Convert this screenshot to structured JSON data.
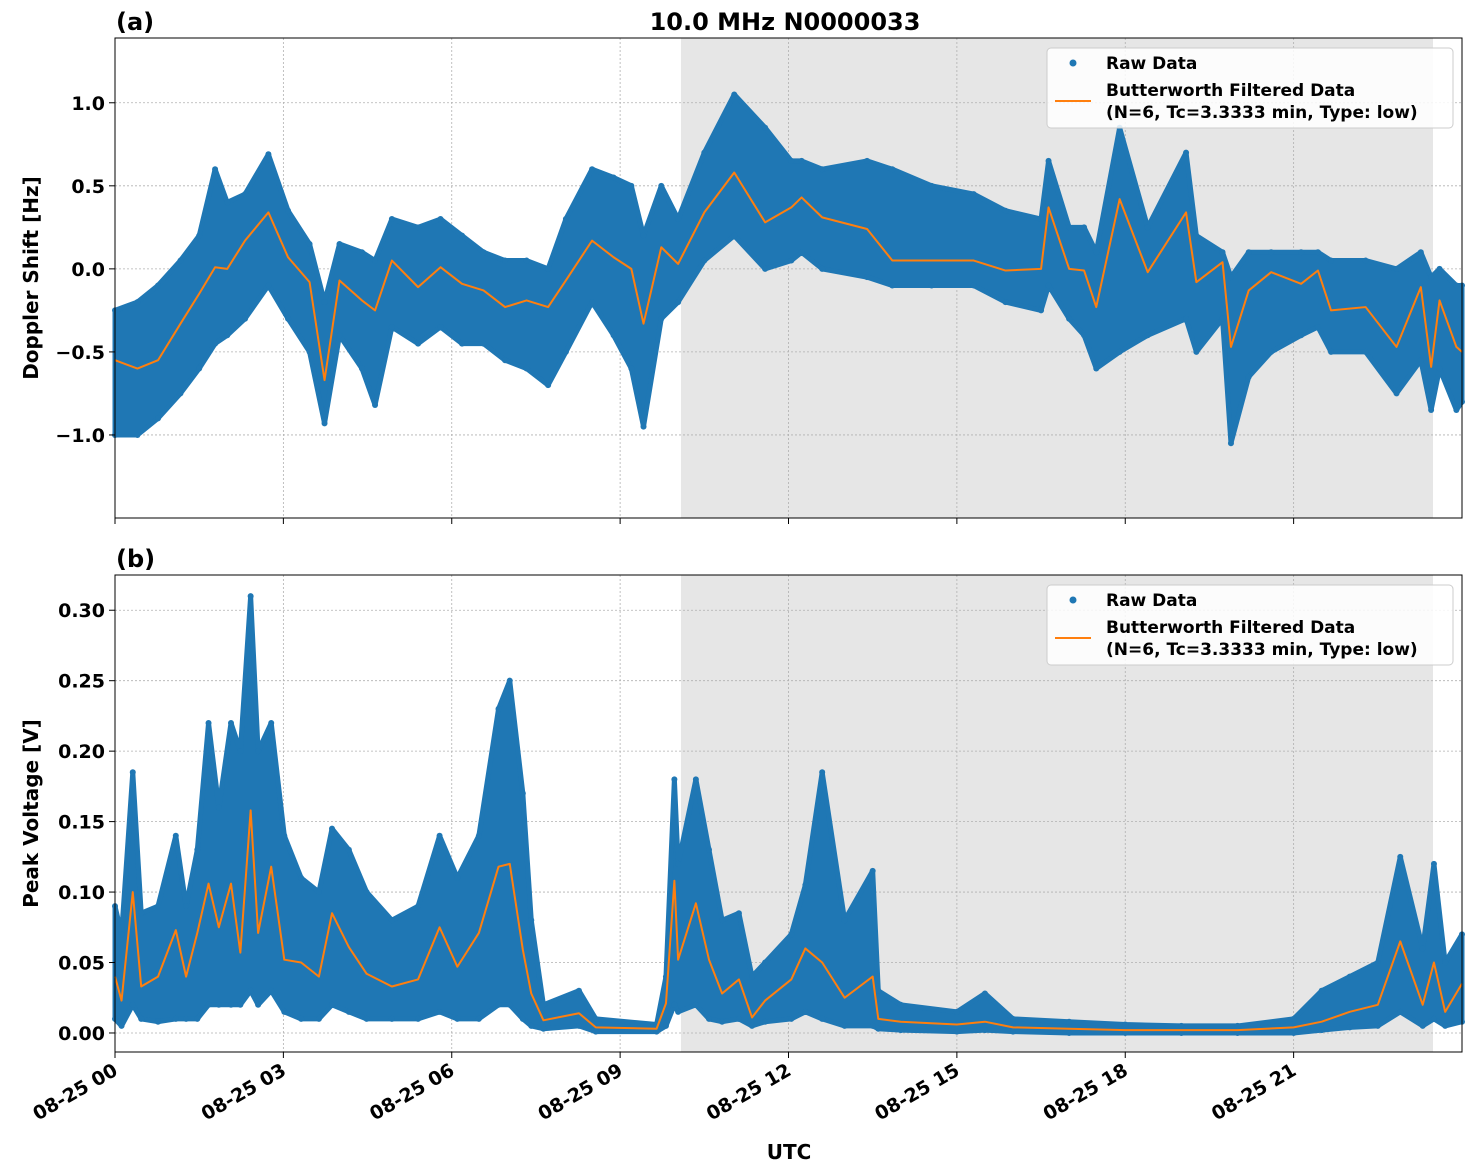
{
  "figure": {
    "title": "10.0 MHz N0000033",
    "xlabel": "UTC"
  },
  "colors": {
    "raw": "#1f77b4",
    "filtered": "#ff7f0e",
    "shade": "#e6e6e6",
    "grid": "#b0b0b0"
  },
  "chart_data": [
    {
      "panel_label": "(a)",
      "type": "scatter+line",
      "ylabel": "Doppler Shift [Hz]",
      "ylim": [
        -1.5,
        1.39
      ],
      "yticks": [
        1.0,
        0.5,
        0.0,
        -0.5,
        -1.0
      ],
      "ytick_labels": [
        "1.0",
        "0.5",
        "0.0",
        "−0.5",
        "−1.0"
      ],
      "xlim": [
        "00:00",
        "24:00"
      ],
      "xticks": [
        "00:00",
        "03:00",
        "06:00",
        "09:00",
        "12:00",
        "15:00",
        "18:00",
        "21:00"
      ],
      "xtick_labels": [
        "08-25 00",
        "08-25 03",
        "08-25 06",
        "08-25 09",
        "08-25 12",
        "08-25 15",
        "08-25 18",
        "08-25 21"
      ],
      "show_xtick_labels": false,
      "grid": true,
      "shaded_span": [
        "10:05",
        "23:29"
      ],
      "legend": {
        "placement": "upper-right",
        "entries": [
          "Raw Data",
          "Butterworth Filtered Data",
          "(N=6, Tc=3.3333 min, Type: low)"
        ]
      },
      "time": [
        "00:00",
        "00:24",
        "00:46",
        "01:10",
        "01:30",
        "01:47",
        "02:00",
        "02:19",
        "02:44",
        "03:05",
        "03:28",
        "03:44",
        "04:00",
        "04:24",
        "04:38",
        "04:56",
        "05:24",
        "05:48",
        "06:11",
        "06:34",
        "06:57",
        "07:20",
        "07:43",
        "08:02",
        "08:30",
        "08:53",
        "09:12",
        "09:25",
        "09:44",
        "10:02",
        "10:30",
        "11:02",
        "11:35",
        "12:03",
        "12:14",
        "12:36",
        "13:24",
        "13:51",
        "14:33",
        "15:18",
        "15:52",
        "16:30",
        "16:38",
        "17:00",
        "17:16",
        "17:29",
        "17:54",
        "18:24",
        "19:05",
        "19:16",
        "19:44",
        "19:53",
        "20:12",
        "20:36",
        "21:08",
        "21:26",
        "21:40",
        "22:17",
        "22:50",
        "23:16",
        "23:27",
        "23:36",
        "23:54",
        "24:00"
      ],
      "filtered": [
        -0.55,
        -0.6,
        -0.55,
        -0.33,
        -0.15,
        0.01,
        0.0,
        0.17,
        0.34,
        0.07,
        -0.08,
        -0.67,
        -0.07,
        -0.19,
        -0.25,
        0.05,
        -0.11,
        0.01,
        -0.09,
        -0.13,
        -0.23,
        -0.19,
        -0.23,
        -0.07,
        0.17,
        0.07,
        0.0,
        -0.33,
        0.13,
        0.03,
        0.34,
        0.58,
        0.28,
        0.37,
        0.43,
        0.31,
        0.24,
        0.05,
        0.05,
        0.05,
        -0.01,
        0.0,
        0.37,
        0.0,
        -0.01,
        -0.23,
        0.42,
        -0.02,
        0.34,
        -0.08,
        0.04,
        -0.47,
        -0.13,
        -0.02,
        -0.09,
        -0.01,
        -0.25,
        -0.23,
        -0.47,
        -0.11,
        -0.59,
        -0.19,
        -0.47,
        -0.5
      ],
      "raw_min": [
        -1.0,
        -1.0,
        -0.9,
        -0.75,
        -0.6,
        -0.45,
        -0.4,
        -0.3,
        -0.1,
        -0.3,
        -0.5,
        -0.93,
        -0.4,
        -0.6,
        -0.82,
        -0.35,
        -0.45,
        -0.35,
        -0.45,
        -0.45,
        -0.55,
        -0.6,
        -0.7,
        -0.5,
        -0.2,
        -0.4,
        -0.6,
        -0.95,
        -0.3,
        -0.2,
        0.05,
        0.2,
        0.0,
        0.05,
        0.1,
        0.0,
        -0.05,
        -0.1,
        -0.1,
        -0.1,
        -0.2,
        -0.25,
        -0.1,
        -0.3,
        -0.4,
        -0.6,
        -0.5,
        -0.4,
        -0.3,
        -0.5,
        -0.3,
        -1.05,
        -0.65,
        -0.5,
        -0.4,
        -0.35,
        -0.5,
        -0.5,
        -0.75,
        -0.55,
        -0.85,
        -0.6,
        -0.85,
        -0.8
      ],
      "raw_max": [
        -0.25,
        -0.2,
        -0.1,
        0.05,
        0.2,
        0.6,
        0.4,
        0.45,
        0.69,
        0.35,
        0.15,
        -0.2,
        0.15,
        0.1,
        0.05,
        0.3,
        0.25,
        0.3,
        0.2,
        0.1,
        0.05,
        0.05,
        0.0,
        0.3,
        0.6,
        0.55,
        0.5,
        0.2,
        0.5,
        0.3,
        0.7,
        1.05,
        0.85,
        0.65,
        0.65,
        0.6,
        0.65,
        0.6,
        0.5,
        0.45,
        0.35,
        0.3,
        0.65,
        0.25,
        0.25,
        0.1,
        0.85,
        0.25,
        0.7,
        0.2,
        0.1,
        -0.05,
        0.1,
        0.1,
        0.1,
        0.1,
        0.05,
        0.05,
        0.0,
        0.1,
        -0.05,
        0.0,
        -0.1,
        -0.1
      ]
    },
    {
      "panel_label": "(b)",
      "type": "scatter+line",
      "ylabel": "Peak Voltage [V]",
      "ylim": [
        -0.0135,
        0.325
      ],
      "yticks": [
        0.3,
        0.25,
        0.2,
        0.15,
        0.1,
        0.05,
        0.0
      ],
      "ytick_labels": [
        "0.30",
        "0.25",
        "0.20",
        "0.15",
        "0.10",
        "0.05",
        "0.00"
      ],
      "xlim": [
        "00:00",
        "24:00"
      ],
      "xticks": [
        "00:00",
        "03:00",
        "06:00",
        "09:00",
        "12:00",
        "15:00",
        "18:00",
        "21:00"
      ],
      "xtick_labels": [
        "08-25 00",
        "08-25 03",
        "08-25 06",
        "08-25 09",
        "08-25 12",
        "08-25 15",
        "08-25 18",
        "08-25 21"
      ],
      "show_xtick_labels": true,
      "grid": true,
      "shaded_span": [
        "10:05",
        "23:29"
      ],
      "legend": {
        "placement": "upper-right",
        "entries": [
          "Raw Data",
          "Butterworth Filtered Data",
          "(N=6, Tc=3.3333 min, Type: low)"
        ]
      },
      "time": [
        "00:00",
        "00:07",
        "00:19",
        "00:28",
        "00:46",
        "01:05",
        "01:16",
        "01:28",
        "01:40",
        "01:51",
        "02:04",
        "02:14",
        "02:25",
        "02:33",
        "02:47",
        "03:01",
        "03:19",
        "03:38",
        "03:52",
        "04:10",
        "04:29",
        "04:56",
        "05:24",
        "05:47",
        "06:06",
        "06:29",
        "06:50",
        "07:02",
        "07:16",
        "07:25",
        "07:38",
        "08:16",
        "08:34",
        "09:39",
        "09:49",
        "09:58",
        "10:02",
        "10:21",
        "10:35",
        "10:49",
        "11:07",
        "11:21",
        "11:35",
        "12:03",
        "12:18",
        "12:36",
        "13:00",
        "13:30",
        "13:36",
        "14:00",
        "15:00",
        "15:30",
        "16:00",
        "17:00",
        "18:00",
        "19:00",
        "20:00",
        "21:00",
        "21:30",
        "22:00",
        "22:30",
        "22:54",
        "23:18",
        "23:30",
        "23:42",
        "24:00"
      ],
      "filtered": [
        0.04,
        0.023,
        0.1,
        0.033,
        0.04,
        0.073,
        0.04,
        0.071,
        0.106,
        0.075,
        0.106,
        0.057,
        0.158,
        0.071,
        0.118,
        0.052,
        0.05,
        0.04,
        0.085,
        0.061,
        0.042,
        0.033,
        0.038,
        0.075,
        0.047,
        0.071,
        0.118,
        0.12,
        0.059,
        0.028,
        0.009,
        0.014,
        0.004,
        0.003,
        0.021,
        0.108,
        0.052,
        0.092,
        0.052,
        0.028,
        0.038,
        0.011,
        0.023,
        0.038,
        0.06,
        0.05,
        0.025,
        0.04,
        0.01,
        0.008,
        0.006,
        0.008,
        0.004,
        0.003,
        0.002,
        0.002,
        0.002,
        0.004,
        0.008,
        0.015,
        0.02,
        0.065,
        0.02,
        0.05,
        0.015,
        0.035
      ],
      "raw_min": [
        0.01,
        0.005,
        0.02,
        0.01,
        0.008,
        0.01,
        0.01,
        0.01,
        0.02,
        0.02,
        0.02,
        0.02,
        0.03,
        0.02,
        0.03,
        0.015,
        0.01,
        0.01,
        0.02,
        0.015,
        0.01,
        0.01,
        0.01,
        0.015,
        0.01,
        0.01,
        0.02,
        0.02,
        0.01,
        0.005,
        0.003,
        0.005,
        0.001,
        0.001,
        0.005,
        0.02,
        0.015,
        0.02,
        0.01,
        0.008,
        0.01,
        0.005,
        0.008,
        0.01,
        0.015,
        0.01,
        0.005,
        0.005,
        0.003,
        0.002,
        0.001,
        0.002,
        0.001,
        0.0,
        0.0,
        0.0,
        0.0,
        0.0,
        0.002,
        0.004,
        0.005,
        0.015,
        0.005,
        0.01,
        0.005,
        0.008
      ],
      "raw_max": [
        0.09,
        0.07,
        0.185,
        0.085,
        0.09,
        0.14,
        0.09,
        0.13,
        0.22,
        0.16,
        0.22,
        0.2,
        0.31,
        0.2,
        0.22,
        0.14,
        0.11,
        0.1,
        0.145,
        0.13,
        0.1,
        0.08,
        0.09,
        0.14,
        0.11,
        0.14,
        0.23,
        0.25,
        0.17,
        0.08,
        0.02,
        0.03,
        0.01,
        0.006,
        0.04,
        0.18,
        0.12,
        0.18,
        0.13,
        0.08,
        0.085,
        0.04,
        0.05,
        0.07,
        0.105,
        0.185,
        0.08,
        0.115,
        0.03,
        0.02,
        0.015,
        0.028,
        0.01,
        0.008,
        0.006,
        0.005,
        0.005,
        0.01,
        0.03,
        0.04,
        0.05,
        0.125,
        0.06,
        0.12,
        0.05,
        0.07
      ]
    }
  ]
}
